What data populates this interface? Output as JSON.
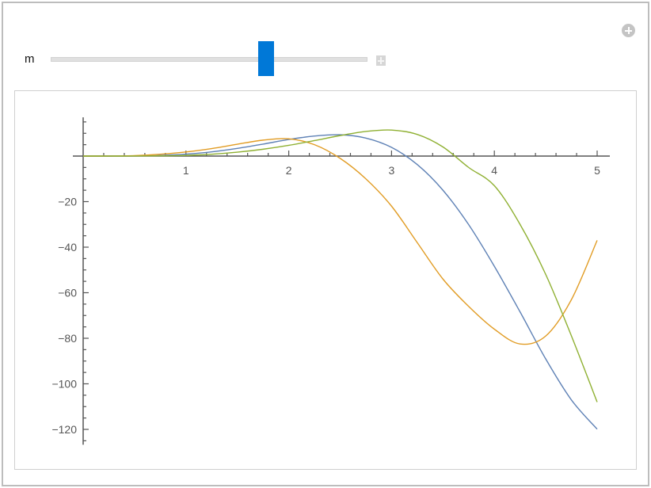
{
  "controls": {
    "variable_label": "m",
    "slider_value_fraction": 0.69,
    "add_icon": "plus-circle-icon",
    "expand_icon": "plus-square-icon",
    "thumb_color": "#0078d7"
  },
  "chart_data": {
    "type": "line",
    "title": "",
    "xlabel": "",
    "ylabel": "",
    "xlim": [
      0,
      5
    ],
    "ylim": [
      -125,
      17
    ],
    "grid": false,
    "x_ticks": [
      1,
      2,
      3,
      4,
      5
    ],
    "x_tick_labels": [
      "1",
      "2",
      "3",
      "4",
      "5"
    ],
    "y_ticks": [
      -20,
      -40,
      -60,
      -80,
      -100,
      -120
    ],
    "y_tick_labels": [
      "−20",
      "−40",
      "−60",
      "−80",
      "−100",
      "−120"
    ],
    "x": [
      0,
      0.25,
      0.5,
      0.75,
      1,
      1.25,
      1.5,
      1.75,
      2,
      2.25,
      2.5,
      2.75,
      3,
      3.25,
      3.5,
      3.75,
      4,
      4.25,
      4.5,
      4.75,
      5
    ],
    "series": [
      {
        "color": "#5e81b5",
        "values": [
          0,
          0.004,
          0.06,
          0.29,
          0.84,
          1.85,
          3.37,
          5.25,
          7.27,
          8.8,
          9.35,
          7.9,
          3.81,
          -3.73,
          -15.0,
          -30.1,
          -48.4,
          -68.4,
          -89.1,
          -107.1,
          -119.9
        ]
      },
      {
        "color": "#e19c24",
        "values": [
          0,
          0.02,
          0.2,
          0.8,
          1.8,
          3.3,
          5.2,
          7.0,
          7.6,
          5.0,
          -1,
          -10,
          -22,
          -38,
          -54,
          -66,
          -76,
          -82.5,
          -79,
          -63,
          -37
        ]
      },
      {
        "color": "#8fb032",
        "values": [
          0,
          0.001,
          0.01,
          0.1,
          0.3,
          0.8,
          1.7,
          3.0,
          4.7,
          6.8,
          9.0,
          10.8,
          11.4,
          9.5,
          4,
          -5,
          -13,
          -30,
          -52,
          -79,
          -108
        ]
      }
    ]
  }
}
